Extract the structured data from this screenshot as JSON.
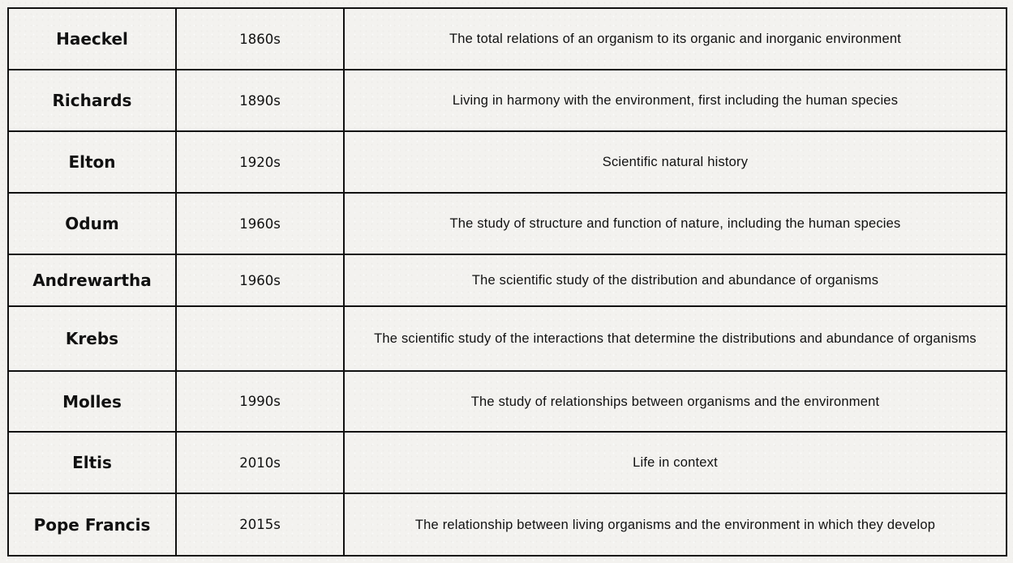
{
  "rows": [
    {
      "name": "Haeckel",
      "era": "1860s",
      "definition": "The total relations of an organism to its organic and inorganic environment"
    },
    {
      "name": "Richards",
      "era": "1890s",
      "definition": "Living in harmony with the environment, first including the human species"
    },
    {
      "name": "Elton",
      "era": "1920s",
      "definition": "Scientific natural history"
    },
    {
      "name": "Odum",
      "era": "1960s",
      "definition": "The study of structure and function of nature, including the human species"
    },
    {
      "name": "Andrewartha",
      "era": "1960s",
      "definition": "The scientific study of the distribution and abundance of organisms"
    },
    {
      "name": "Krebs",
      "era": "",
      "definition": "The scientific study of the interactions that determine the distributions and abundance of organisms"
    },
    {
      "name": "Molles",
      "era": "1990s",
      "definition": "The study of relationships between organisms and the environment"
    },
    {
      "name": "Eltis",
      "era": "2010s",
      "definition": "Life in context"
    },
    {
      "name": "Pope Francis",
      "era": "2015s",
      "definition": "The relationship between living organisms and the environment in which they develop"
    }
  ]
}
